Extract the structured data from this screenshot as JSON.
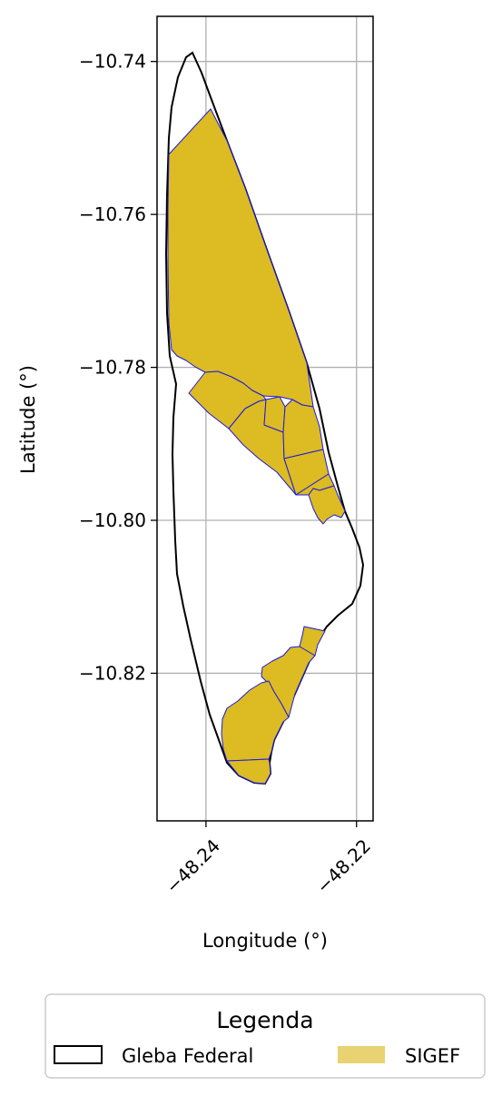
{
  "map": {
    "xlabel": "Longitude (°)",
    "ylabel": "Latitude (°)",
    "x_ticks": [
      {
        "value": -48.24,
        "label": "−48.24"
      },
      {
        "value": -48.22,
        "label": "−48.22"
      }
    ],
    "y_ticks": [
      {
        "value": -10.74,
        "label": "−10.74"
      },
      {
        "value": -10.76,
        "label": "−10.76"
      },
      {
        "value": -10.78,
        "label": "−10.78"
      },
      {
        "value": -10.8,
        "label": "−10.80"
      },
      {
        "value": -10.82,
        "label": "−10.82"
      }
    ],
    "xlim": [
      -48.2465,
      -48.2178
    ],
    "ylim": [
      -10.8393,
      -10.7341
    ],
    "grid": true,
    "colors": {
      "gleba_edge": "#000000",
      "sigef_fill": "#DDBB22",
      "sigef_edge": "#1a1adf",
      "grid": "#b0b0b0",
      "legend_sigef_patch": "#E8D272"
    }
  },
  "legend": {
    "title": "Legenda",
    "items": [
      {
        "label": "Gleba Federal",
        "style": "outline"
      },
      {
        "label": "SIGEF",
        "style": "fill"
      }
    ],
    "placement": "bottom-center"
  }
}
